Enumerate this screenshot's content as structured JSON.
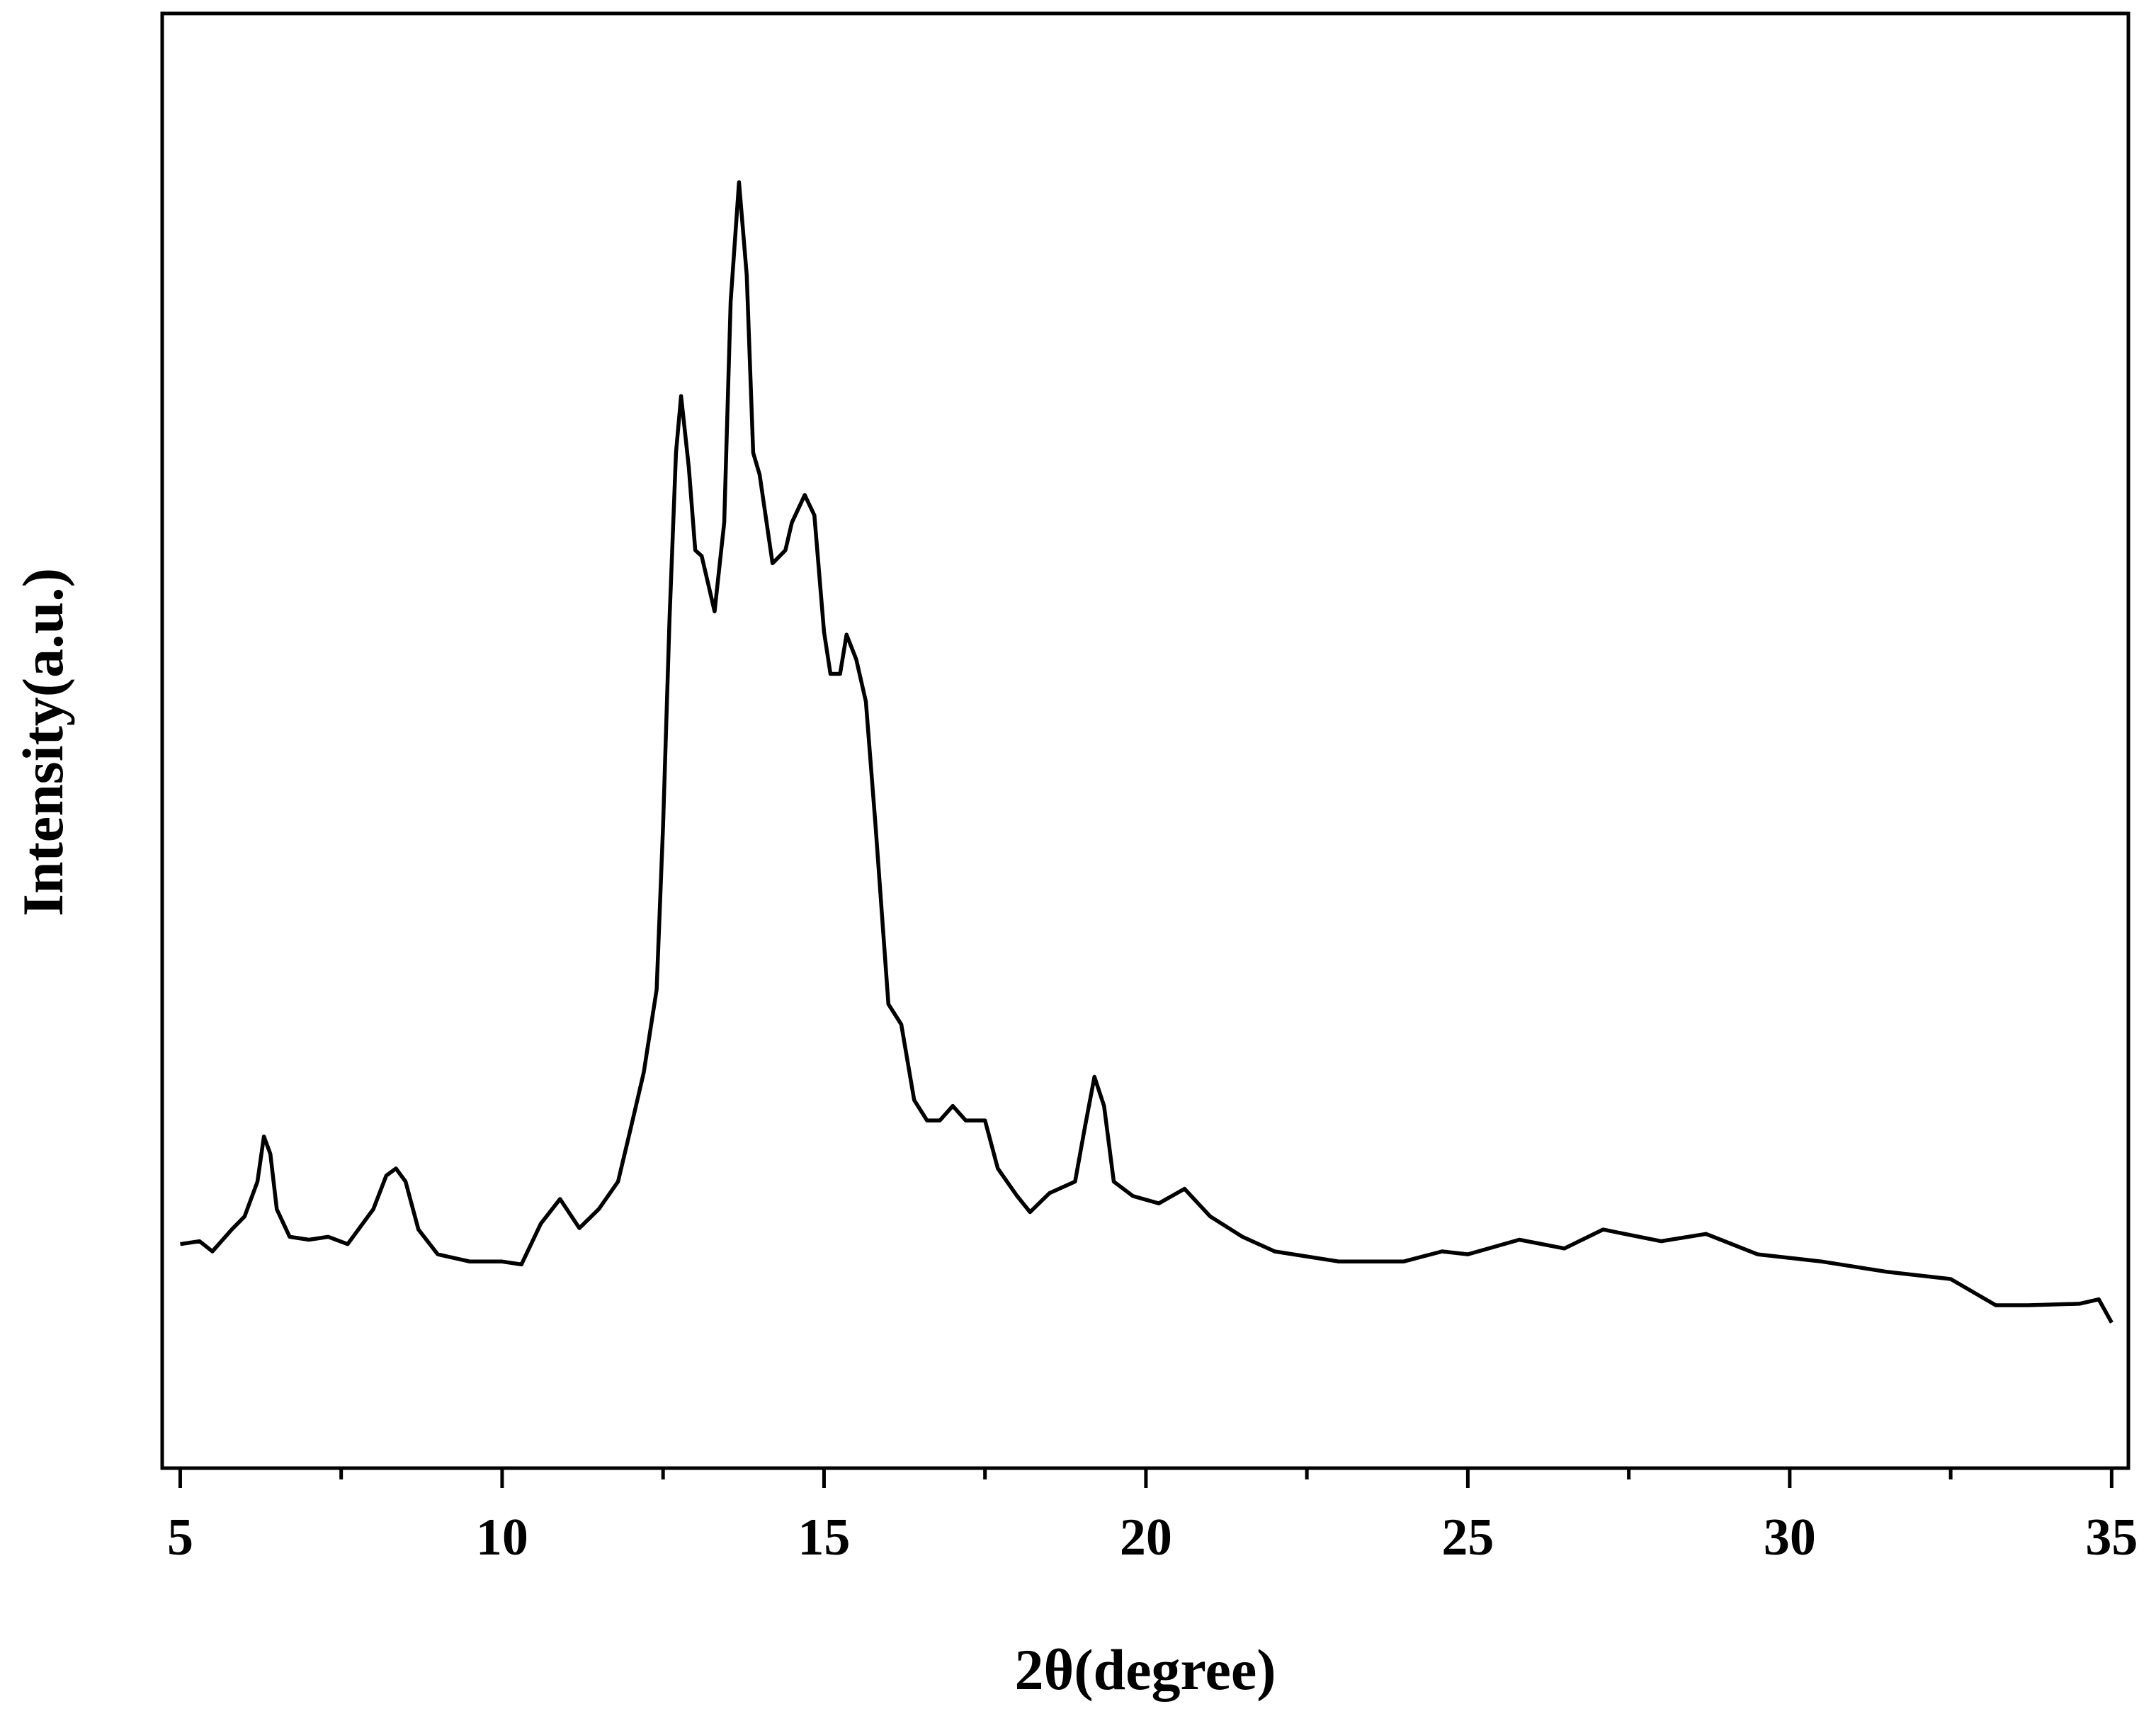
{
  "chart_data": {
    "type": "line",
    "xlabel": "2θ(degree)",
    "ylabel": "Intensity(a.u.)",
    "xlim": [
      4.72,
      35.26
    ],
    "ylim": [
      0,
      100
    ],
    "xticks": [
      5,
      10,
      15,
      20,
      25,
      30,
      35
    ],
    "xminorticks": [
      7.5,
      12.5,
      17.5,
      22.5,
      27.5,
      32.5
    ],
    "grid": false,
    "series": [
      {
        "color": "#000000",
        "x": [
          5.0,
          5.3,
          5.5,
          5.8,
          6.0,
          6.2,
          6.3,
          6.4,
          6.5,
          6.7,
          7.0,
          7.3,
          7.6,
          8.0,
          8.2,
          8.35,
          8.5,
          8.7,
          9.0,
          9.5,
          10.0,
          10.3,
          10.6,
          10.9,
          11.2,
          11.5,
          11.8,
          12.0,
          12.2,
          12.4,
          12.5,
          12.6,
          12.7,
          12.78,
          12.9,
          13.0,
          13.1,
          13.3,
          13.45,
          13.55,
          13.68,
          13.8,
          13.9,
          14.0,
          14.2,
          14.4,
          14.5,
          14.7,
          14.85,
          15.0,
          15.1,
          15.25,
          15.35,
          15.5,
          15.65,
          15.8,
          16.0,
          16.2,
          16.4,
          16.6,
          16.8,
          17.0,
          17.2,
          17.5,
          17.7,
          18.0,
          18.2,
          18.5,
          18.9,
          19.05,
          19.2,
          19.35,
          19.5,
          19.8,
          20.2,
          20.6,
          21.0,
          21.5,
          22.0,
          23.0,
          24.0,
          24.6,
          25.0,
          25.8,
          26.5,
          27.1,
          28.0,
          28.7,
          29.5,
          30.5,
          31.5,
          32.5,
          33.2,
          33.7,
          34.5,
          34.8,
          35.0
        ],
        "values": [
          15.4,
          15.6,
          14.9,
          16.4,
          17.3,
          19.7,
          22.8,
          21.6,
          17.8,
          15.9,
          15.7,
          15.9,
          15.4,
          17.8,
          20.1,
          20.6,
          19.7,
          16.4,
          14.7,
          14.2,
          14.2,
          14.0,
          16.8,
          18.5,
          16.5,
          17.8,
          19.7,
          23.4,
          27.2,
          32.9,
          44.2,
          58.4,
          69.8,
          73.7,
          68.8,
          63.1,
          62.7,
          58.9,
          65.0,
          80.2,
          88.4,
          82.0,
          69.8,
          68.3,
          62.2,
          63.1,
          65.0,
          66.9,
          65.5,
          57.5,
          54.6,
          54.6,
          57.3,
          55.6,
          52.7,
          44.2,
          31.9,
          30.5,
          25.3,
          23.9,
          23.9,
          24.9,
          23.9,
          23.9,
          20.6,
          18.7,
          17.6,
          18.9,
          19.7,
          23.4,
          26.9,
          24.9,
          19.7,
          18.7,
          18.2,
          19.2,
          17.3,
          15.9,
          14.9,
          14.2,
          14.2,
          14.9,
          14.7,
          15.7,
          15.1,
          16.4,
          15.6,
          16.1,
          14.7,
          14.2,
          13.5,
          13.0,
          11.2,
          11.2,
          11.3,
          11.6,
          10.0
        ]
      }
    ]
  }
}
